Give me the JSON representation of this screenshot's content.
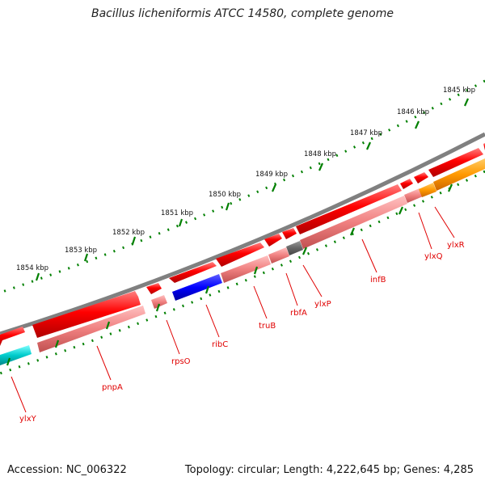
{
  "title": "Bacillus licheniformis ATCC 14580, complete genome",
  "footer": {
    "accession": "Accession: NC_006322",
    "summary": "Topology: circular; Length: 4,222,645 bp; Genes: 4,285"
  },
  "ruler_labels": [
    "1845 kbp",
    "1846 kbp",
    "1847 kbp",
    "1848 kbp",
    "1849 kbp",
    "1850 kbp",
    "1851 kbp",
    "1852 kbp",
    "1853 kbp",
    "1854 kbp"
  ],
  "gene_labels": [
    "ylxY",
    "pnpA",
    "rpsO",
    "ribC",
    "truB",
    "rbfA",
    "ylxP",
    "infB",
    "ylxQ",
    "ylxR"
  ],
  "colors": {
    "backbone": "#808080",
    "gene_red": "#ff0000",
    "gene_pink": "#f08080",
    "gene_blue": "#0000ff",
    "gene_cyan": "#00cccc",
    "gene_gray": "#666666",
    "gene_orange": "#ff9900",
    "tick_green": "#008000",
    "label_red": "#e00000"
  }
}
